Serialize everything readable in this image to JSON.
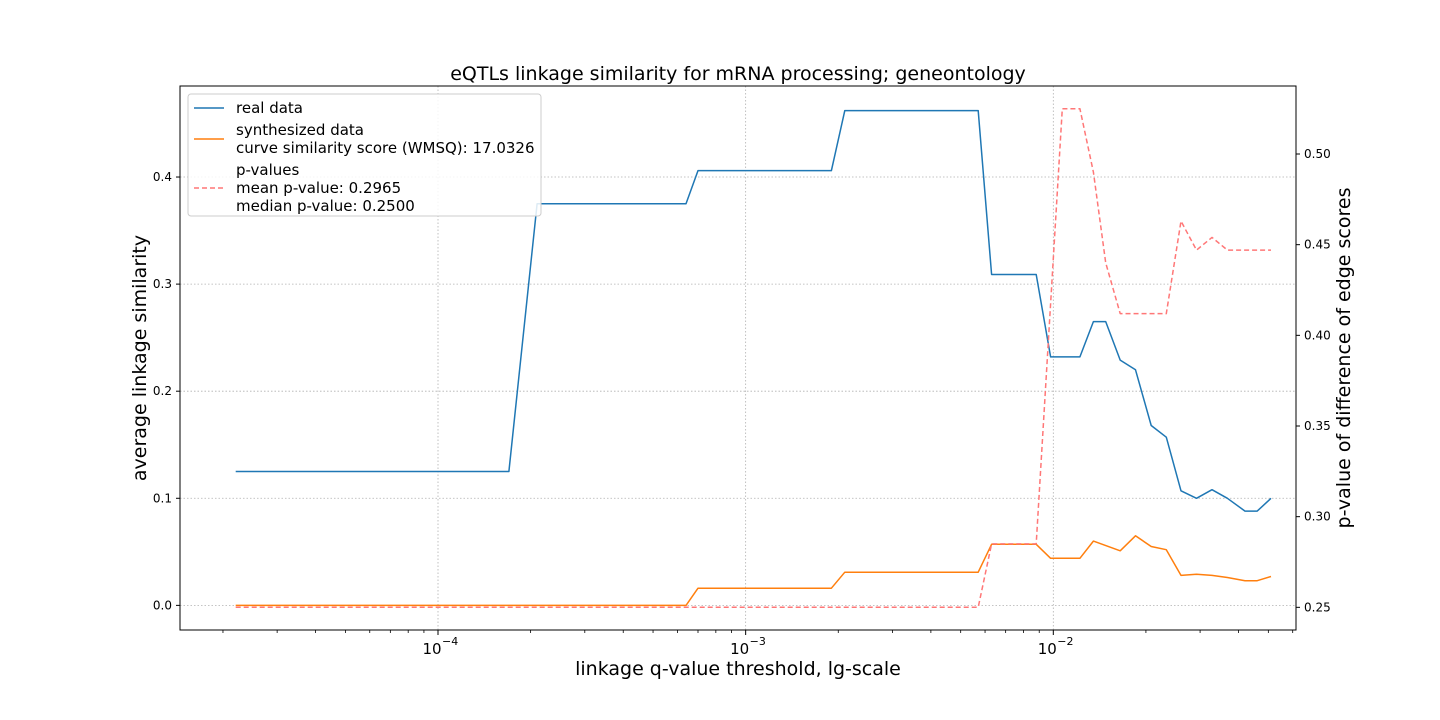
{
  "chart_data": {
    "type": "line",
    "title": "eQTLs linkage similarity for mRNA processing; geneontology",
    "xlabel": "linkage q-value threshold, lg-scale",
    "ylabel": "average linkage similarity",
    "y2label": "p-value of difference of edge scores",
    "xscale": "log",
    "xlim": [
      1.45e-05,
      0.0615
    ],
    "ylim": [
      -0.023,
      0.485
    ],
    "y2lim": [
      0.2375,
      0.5375
    ],
    "x_tick_values": [
      0.0001,
      0.001,
      0.01
    ],
    "x_tick_labels": [
      "10",
      "10",
      "10"
    ],
    "x_tick_exponents": [
      "−4",
      "−3",
      "−2"
    ],
    "y_ticks": [
      0.0,
      0.1,
      0.2,
      0.3,
      0.4
    ],
    "y_tick_labels": [
      "0.0",
      "0.1",
      "0.2",
      "0.3",
      "0.4"
    ],
    "y2_ticks": [
      0.25,
      0.3,
      0.35,
      0.4,
      0.45,
      0.5
    ],
    "y2_tick_labels": [
      "0.25",
      "0.30",
      "0.35",
      "0.40",
      "0.45",
      "0.50"
    ],
    "grid": true,
    "legend_position": "top-left",
    "series": [
      {
        "name": "real data",
        "axis": "left",
        "color": "#1f77b4",
        "style": "solid",
        "x": [
          2.2e-05,
          0.00017,
          0.00021,
          0.00064,
          0.0007,
          0.0019,
          0.0021,
          0.0057,
          0.0063,
          0.0088,
          0.0098,
          0.0122,
          0.0135,
          0.0148,
          0.0165,
          0.0185,
          0.0208,
          0.0233,
          0.026,
          0.0292,
          0.0328,
          0.0368,
          0.042,
          0.046,
          0.051
        ],
        "y": [
          0.125,
          0.125,
          0.375,
          0.375,
          0.406,
          0.406,
          0.462,
          0.462,
          0.309,
          0.309,
          0.232,
          0.232,
          0.265,
          0.265,
          0.229,
          0.22,
          0.168,
          0.157,
          0.107,
          0.1,
          0.108,
          0.1,
          0.088,
          0.088,
          0.1
        ]
      },
      {
        "name": "synthesized data",
        "axis": "left",
        "color": "#ff7f0e",
        "style": "solid",
        "x": [
          2.2e-05,
          0.00064,
          0.0007,
          0.0019,
          0.0021,
          0.0057,
          0.0063,
          0.0088,
          0.0098,
          0.0122,
          0.0135,
          0.0165,
          0.0185,
          0.0208,
          0.0233,
          0.026,
          0.0292,
          0.0328,
          0.0368,
          0.042,
          0.046,
          0.051
        ],
        "y": [
          0.0,
          0.0,
          0.016,
          0.016,
          0.031,
          0.031,
          0.057,
          0.057,
          0.044,
          0.044,
          0.06,
          0.051,
          0.065,
          0.055,
          0.052,
          0.028,
          0.029,
          0.028,
          0.026,
          0.023,
          0.023,
          0.027
        ]
      },
      {
        "name": "p-values",
        "axis": "right",
        "color": "#ff7777",
        "style": "dashed",
        "x": [
          2.2e-05,
          0.0057,
          0.0063,
          0.0088,
          0.0107,
          0.0122,
          0.0135,
          0.0148,
          0.0165,
          0.0185,
          0.0208,
          0.0233,
          0.026,
          0.0292,
          0.0328,
          0.0368,
          0.042,
          0.046,
          0.051
        ],
        "y": [
          0.25,
          0.25,
          0.285,
          0.285,
          0.525,
          0.525,
          0.49,
          0.44,
          0.412,
          0.412,
          0.412,
          0.412,
          0.463,
          0.447,
          0.454,
          0.447,
          0.447,
          0.447,
          0.447
        ]
      }
    ],
    "legend": [
      {
        "lines": [
          "real data"
        ],
        "color": "#1f77b4",
        "style": "solid"
      },
      {
        "lines": [
          "synthesized data",
          "curve similarity score (WMSQ): 17.0326"
        ],
        "color": "#ff7f0e",
        "style": "solid"
      },
      {
        "lines": [
          "p-values",
          "mean p-value: 0.2965",
          "median p-value: 0.2500"
        ],
        "color": "#ff7777",
        "style": "dashed"
      }
    ]
  }
}
